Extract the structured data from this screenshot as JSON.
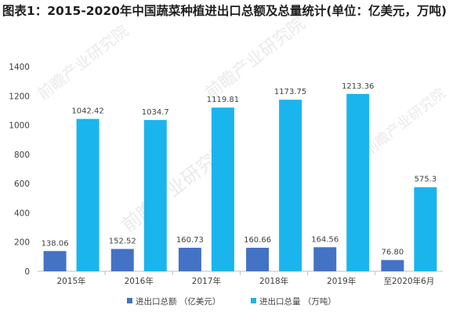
{
  "title": "图表1：2015-2020年中国蔬菜种植进出口总额及总量统计(单位：亿美元，万吨)",
  "watermark": "前瞻产业研究院",
  "colors": {
    "series1": "#4472c4",
    "series2": "#1ab5ec",
    "axis": "#bfbfbf",
    "text": "#404040",
    "watermark": "#d9d9d9"
  },
  "chart_data": {
    "type": "bar",
    "categories": [
      "2015年",
      "2016年",
      "2017年",
      "2018年",
      "2019年",
      "至2020年6月"
    ],
    "series": [
      {
        "name": "进出口总额 （亿美元）",
        "values": [
          138.06,
          152.52,
          160.73,
          160.66,
          164.56,
          76.8
        ],
        "labels": [
          "138.06",
          "152.52",
          "160.73",
          "160.66",
          "164.56",
          "76.80"
        ]
      },
      {
        "name": "进出口总量 （万吨）",
        "values": [
          1042.42,
          1034.7,
          1119.81,
          1173.75,
          1213.36,
          575.3
        ],
        "labels": [
          "1042.42",
          "1034.7",
          "1119.81",
          "1173.75",
          "1213.36",
          "575.3"
        ]
      }
    ],
    "yticks": [
      "0",
      "200",
      "400",
      "600",
      "800",
      "1000",
      "1200",
      "1400"
    ],
    "ylim": [
      0,
      1400
    ],
    "grid": false,
    "legend": "bottom",
    "xlabel": "",
    "ylabel": ""
  }
}
